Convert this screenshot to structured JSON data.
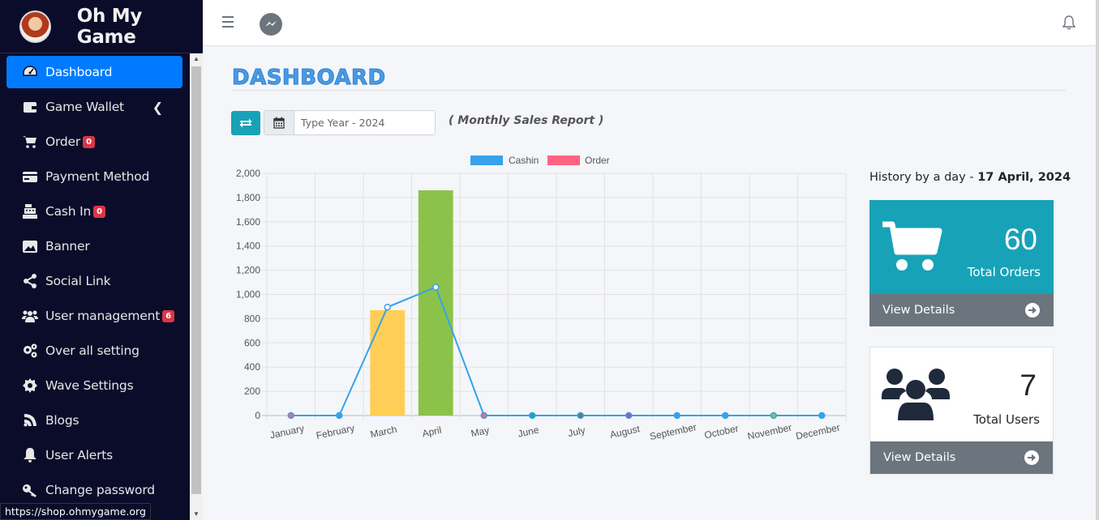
{
  "brand": {
    "name": "Oh My Game"
  },
  "sidebar": {
    "items": [
      {
        "label": "Dashboard",
        "icon": "tachometer-icon",
        "active": true
      },
      {
        "label": "Game Wallet",
        "icon": "wallet-icon",
        "chevron": true
      },
      {
        "label": "Order",
        "icon": "cart-icon",
        "badge": "0"
      },
      {
        "label": "Payment Method",
        "icon": "credit-card-icon"
      },
      {
        "label": "Cash In",
        "icon": "cash-register-icon",
        "badge": "0"
      },
      {
        "label": "Banner",
        "icon": "image-icon"
      },
      {
        "label": "Social Link",
        "icon": "share-icon"
      },
      {
        "label": "User management",
        "icon": "users-icon",
        "badge": "6"
      },
      {
        "label": "Over all setting",
        "icon": "cogs-icon"
      },
      {
        "label": "Wave Settings",
        "icon": "gear-icon"
      },
      {
        "label": "Blogs",
        "icon": "blog-icon"
      },
      {
        "label": "User Alerts",
        "icon": "bell-icon"
      },
      {
        "label": "Change password",
        "icon": "key-icon"
      }
    ]
  },
  "page": {
    "title": "DASHBOARD",
    "year_placeholder": "Type Year - 2024",
    "report_label": "( Monthly Sales Report )"
  },
  "history": {
    "prefix": "History by a day - ",
    "date": "17 April, 2024"
  },
  "cards": {
    "orders": {
      "value": "60",
      "label": "Total Orders",
      "footer": "View Details",
      "color": "#17a2b8"
    },
    "users": {
      "value": "7",
      "label": "Total Users",
      "footer": "View Details"
    }
  },
  "status_url": "https://shop.ohmygame.org",
  "colors": {
    "cashin": "#36a2eb",
    "order": "#ff6384",
    "accent": "#007bff",
    "sidebar": "#0b0c2a"
  },
  "chart_data": {
    "type": "bar",
    "categories": [
      "January",
      "February",
      "March",
      "April",
      "May",
      "June",
      "July",
      "August",
      "September",
      "October",
      "November",
      "December"
    ],
    "ylim": [
      0,
      2000
    ],
    "yticks": [
      0,
      200,
      400,
      600,
      800,
      1000,
      1200,
      1400,
      1600,
      1800,
      2000
    ],
    "ytick_labels": [
      "0",
      "200",
      "400",
      "600",
      "800",
      "1,000",
      "1,200",
      "1,400",
      "1,600",
      "1,800",
      "2,000"
    ],
    "legend": [
      "Cashin",
      "Order"
    ],
    "legend_position": "top",
    "grid": true,
    "bars": {
      "name": "Order",
      "values": [
        0,
        0,
        870,
        1860,
        0,
        0,
        0,
        0,
        0,
        0,
        0,
        0
      ],
      "bar_colors": [
        "#ff6384",
        "#36a2eb",
        "#ffce56",
        "#8bc34a",
        "#ff6384",
        "#36a2eb",
        "#36a2eb",
        "#36a2eb",
        "#36a2eb",
        "#36a2eb",
        "#36a2eb",
        "#36a2eb"
      ]
    },
    "line": {
      "name": "Cashin",
      "values": [
        0,
        0,
        895,
        1060,
        0,
        0,
        0,
        0,
        0,
        0,
        0,
        0
      ],
      "point_colors": [
        "#ff6384",
        "#36a2eb",
        "#ffffff",
        "#ffffff",
        "#ff6384",
        "#17a2b8",
        "#6c757d",
        "#9b59b6",
        "#36a2eb",
        "#36a2eb",
        "#8bc34a",
        "#36a2eb"
      ]
    }
  }
}
